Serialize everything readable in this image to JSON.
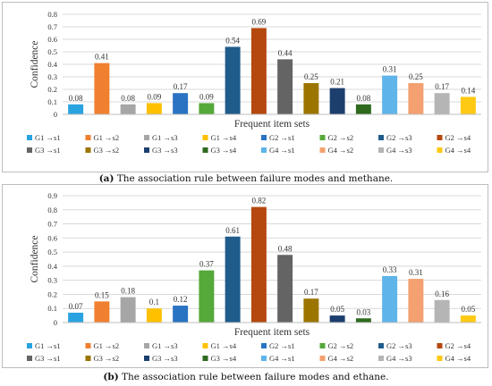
{
  "chart_data": [
    {
      "type": "bar",
      "title": "",
      "xlabel": "Frequent item sets",
      "ylabel": "Confidence",
      "ylim": [
        0,
        0.8
      ],
      "yticks": [
        "0",
        "0.1",
        "0.2",
        "0.3",
        "0.4",
        "0.5",
        "0.6",
        "0.7",
        "0.8"
      ],
      "grid": true,
      "legend_position": "bottom",
      "categories": [
        "G1 →s1",
        "G1 →s2",
        "G1 →s3",
        "G1 →s4",
        "G2 →s1",
        "G2 →s2",
        "G2 →s3",
        "G2 →s4",
        "G3 →s1",
        "G3 →s2",
        "G3 →s3",
        "G3 →s4",
        "G4 →s1",
        "G4 →s2",
        "G4 →s3",
        "G4 →s4"
      ],
      "values": [
        0.08,
        0.41,
        0.08,
        0.09,
        0.17,
        0.09,
        0.54,
        0.69,
        0.44,
        0.25,
        0.21,
        0.08,
        0.31,
        0.25,
        0.17,
        0.14
      ],
      "labels": [
        "0.08",
        "0.41",
        "0.08",
        "0.09",
        "0.17",
        "0.09",
        "0.54",
        "0.69",
        "0.44",
        "0.25",
        "0.21",
        "0.08",
        "0.31",
        "0.25",
        "0.17",
        "0.14"
      ],
      "colors": [
        "#29a3e0",
        "#f08030",
        "#a6a6a6",
        "#ffc000",
        "#2a73c2",
        "#55a83a",
        "#1f5c8c",
        "#b5480f",
        "#646464",
        "#9c7500",
        "#1c3f6e",
        "#2d6a1e",
        "#5fb4ea",
        "#f4a070",
        "#b5b5b5",
        "#ffc914"
      ]
    },
    {
      "type": "bar",
      "title": "",
      "xlabel": "Frequent item sets",
      "ylabel": "Confidence",
      "ylim": [
        0,
        0.9
      ],
      "yticks": [
        "0",
        "0.1",
        "0.2",
        "0.3",
        "0.4",
        "0.5",
        "0.6",
        "0.7",
        "0.8",
        "0.9"
      ],
      "grid": true,
      "legend_position": "bottom",
      "categories": [
        "G1 →s1",
        "G1 →s2",
        "G1 →s3",
        "G1 →s4",
        "G2 →s1",
        "G2 →s2",
        "G2 →s3",
        "G2 →s4",
        "G3 →s1",
        "G3 →s2",
        "G3 →s3",
        "G3 →s4",
        "G4 →s1",
        "G4 →s2",
        "G4 →s3",
        "G4 →s4"
      ],
      "values": [
        0.07,
        0.15,
        0.18,
        0.1,
        0.12,
        0.37,
        0.61,
        0.82,
        0.48,
        0.17,
        0.05,
        0.03,
        0.33,
        0.31,
        0.16,
        0.05
      ],
      "labels": [
        "0.07",
        "0.15",
        "0.18",
        "0.1",
        "0.12",
        "0.37",
        "0.61",
        "0.82",
        "0.48",
        "0.17",
        "0.05",
        "0.03",
        "0.33",
        "0.31",
        "0.16",
        "0.05"
      ],
      "colors": [
        "#29a3e0",
        "#f08030",
        "#a6a6a6",
        "#ffc000",
        "#2a73c2",
        "#55a83a",
        "#1f5c8c",
        "#b5480f",
        "#646464",
        "#9c7500",
        "#1c3f6e",
        "#2d6a1e",
        "#5fb4ea",
        "#f4a070",
        "#b5b5b5",
        "#ffc914"
      ]
    }
  ],
  "captions": {
    "a_label": "(a)",
    "a_text": " The association rule between failure modes and methane.",
    "b_label": "(b)",
    "b_text": " The association rule between failure modes and ethane."
  }
}
